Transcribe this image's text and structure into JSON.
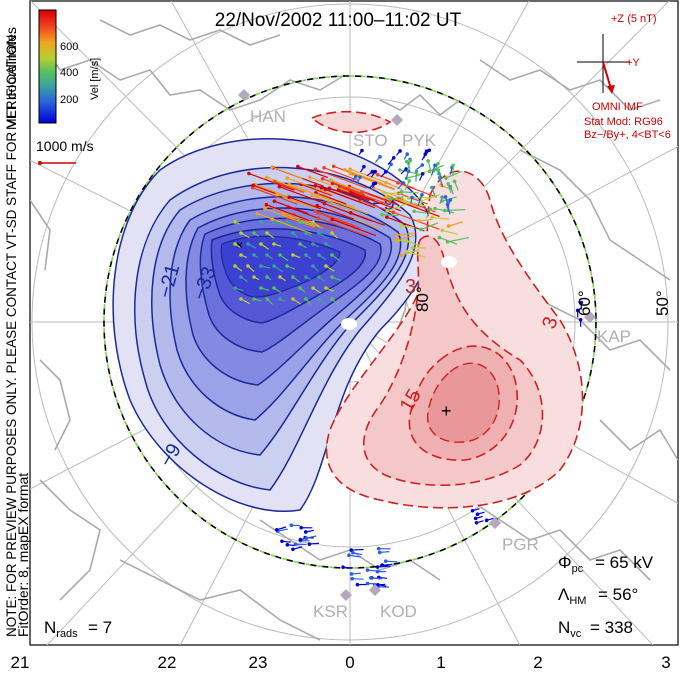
{
  "title": "22/Nov/2002 11:00–11:02 UT",
  "side_note": "NOTE: FOR PREVIEW PURPOSES ONLY. PLEASE CONTACT VT-SD STAFF FOR VERIFICATION.",
  "coord_label": "MLT coordinates",
  "format_label": "FitOrder: 8, mapEX format",
  "colorbar": {
    "label": "Vel [m/s]",
    "ticks": [
      "600",
      "400",
      "200"
    ],
    "colors": [
      "#0000d8",
      "#2a5fe0",
      "#3aa0a0",
      "#56c060",
      "#b8d030",
      "#f0a020",
      "#f04020",
      "#d80000"
    ]
  },
  "ref_vector_label": "1000 m/s",
  "imf": {
    "z_label": "+Z (5 nT)",
    "y_label": "+Y",
    "source": "OMNI IMF",
    "model": "Stat Mod: RG96",
    "condition": "Bz−/By+, 4<BT<6"
  },
  "stations": [
    "HAN",
    "STO",
    "PYK",
    "KAP",
    "PGR",
    "KSR",
    "KOD"
  ],
  "lat_labels": [
    "80°",
    "60°",
    "50°"
  ],
  "contour_labels": {
    "neg": [
      "−9",
      "−21",
      "−33",
      "−9"
    ],
    "pos": [
      "3",
      "3",
      "15"
    ]
  },
  "stats": {
    "phi_label": "Φ",
    "phi_sub": "pc",
    "phi_value": "= 65 kV",
    "lambda_label": "Λ",
    "lambda_sub": "HM",
    "lambda_value": "= 56°",
    "nvc_label": "N",
    "nvc_sub": "vc",
    "nvc_value": "= 338",
    "nrads_label": "N",
    "nrads_sub": "rads",
    "nrads_value": "= 7"
  },
  "mlt_axis": [
    "21",
    "22",
    "23",
    "0",
    "1",
    "2",
    "3"
  ]
}
